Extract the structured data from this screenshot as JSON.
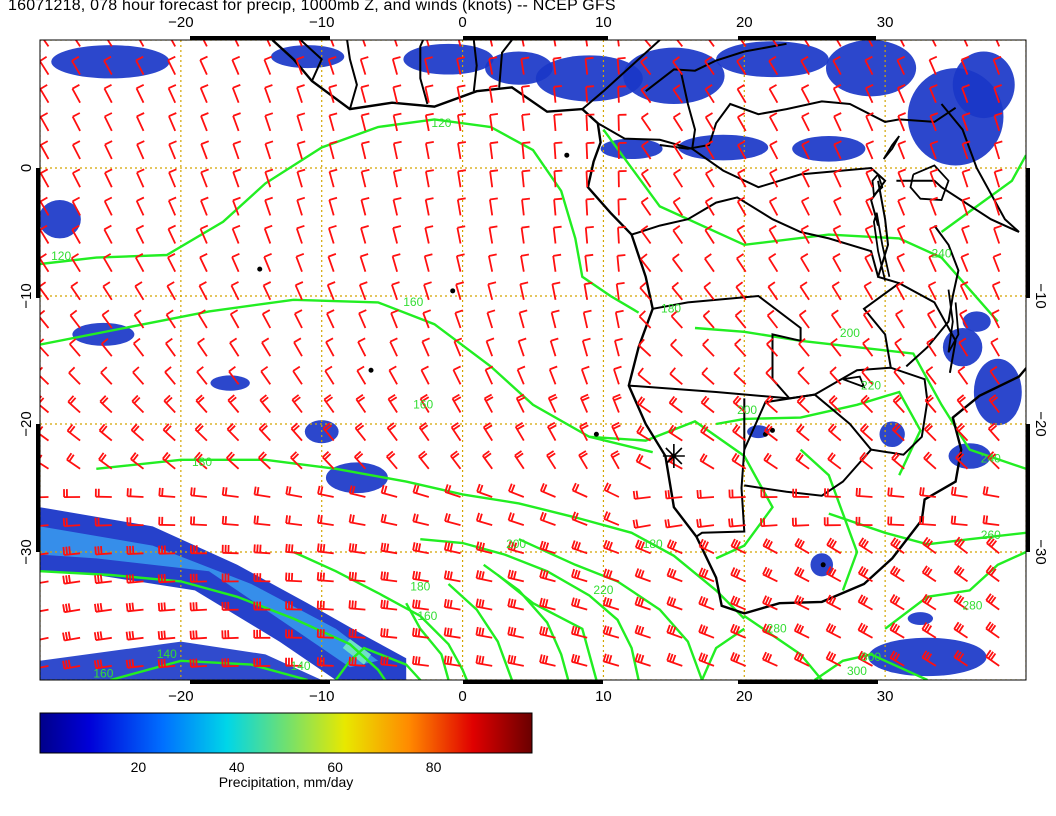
{
  "title": "16071218, 078 hour forecast for precip, 1000mb Z, and winds (knots) -- NCEP GFS",
  "map": {
    "lon_range": [
      -30,
      40
    ],
    "lat_range": [
      -40,
      10
    ],
    "lon_ticks_top": [
      {
        "value": -20,
        "label": "−20"
      },
      {
        "value": -10,
        "label": "−10"
      },
      {
        "value": 0,
        "label": "0"
      },
      {
        "value": 10,
        "label": "10"
      },
      {
        "value": 20,
        "label": "20"
      },
      {
        "value": 30,
        "label": "30"
      }
    ],
    "lon_ticks_bottom": [
      {
        "value": -20,
        "label": "−20"
      },
      {
        "value": -10,
        "label": "−10"
      },
      {
        "value": 0,
        "label": "0"
      },
      {
        "value": 10,
        "label": "10"
      },
      {
        "value": 20,
        "label": "20"
      },
      {
        "value": 30,
        "label": "30"
      }
    ],
    "lat_ticks_left": [
      {
        "value": 0,
        "label": "0"
      },
      {
        "value": -10,
        "label": "−10"
      },
      {
        "value": -20,
        "label": "−20"
      },
      {
        "value": -30,
        "label": "−30"
      }
    ],
    "lat_ticks_right": [
      {
        "value": -10,
        "label": "−10"
      },
      {
        "value": -20,
        "label": "−20"
      },
      {
        "value": -30,
        "label": "−30"
      }
    ],
    "contour_labels": [
      {
        "text": "120",
        "lon": -28.5,
        "lat": -7.2
      },
      {
        "text": "120",
        "lon": -1.5,
        "lat": 3.2
      },
      {
        "text": "140",
        "lon": -21.0,
        "lat": -38.3
      },
      {
        "text": "140",
        "lon": -11.5,
        "lat": -39.2
      },
      {
        "text": "160",
        "lon": -3.5,
        "lat": -10.8
      },
      {
        "text": "160",
        "lon": -25.5,
        "lat": -39.8
      },
      {
        "text": "160",
        "lon": -2.8,
        "lat": -18.8
      },
      {
        "text": "160",
        "lon": -2.5,
        "lat": -35.3
      },
      {
        "text": "180",
        "lon": -18.5,
        "lat": -23.3
      },
      {
        "text": "180",
        "lon": -3.0,
        "lat": -33.0
      },
      {
        "text": "180",
        "lon": 13.5,
        "lat": -29.7
      },
      {
        "text": "180",
        "lon": 14.8,
        "lat": -11.3
      },
      {
        "text": "200",
        "lon": 3.8,
        "lat": -29.7
      },
      {
        "text": "200",
        "lon": 20.2,
        "lat": -19.2
      },
      {
        "text": "200",
        "lon": 27.5,
        "lat": -13.2
      },
      {
        "text": "220",
        "lon": 10.0,
        "lat": -33.3
      },
      {
        "text": "220",
        "lon": 29.0,
        "lat": -17.3
      },
      {
        "text": "240",
        "lon": 37.5,
        "lat": -23.0
      },
      {
        "text": "240",
        "lon": 34.0,
        "lat": -7.0
      },
      {
        "text": "260",
        "lon": 37.5,
        "lat": -29.0
      },
      {
        "text": "280",
        "lon": 22.3,
        "lat": -36.3
      },
      {
        "text": "280",
        "lon": 36.2,
        "lat": -34.5
      },
      {
        "text": "300",
        "lon": 29.0,
        "lat": -38.5
      },
      {
        "text": "300",
        "lon": 28.0,
        "lat": -39.6
      }
    ],
    "station_marker": {
      "lon": 15.0,
      "lat": -22.5
    }
  },
  "colorbar": {
    "label": "Precipitation, mm/day",
    "range": [
      0,
      100
    ],
    "ticks": [
      {
        "value": 20,
        "label": "20"
      },
      {
        "value": 40,
        "label": "40"
      },
      {
        "value": 60,
        "label": "60"
      },
      {
        "value": 80,
        "label": "80"
      }
    ]
  },
  "colors": {
    "wind": "#ff1010",
    "contour": "#22ee22",
    "coast": "#000000",
    "grid": "#d4a500"
  }
}
